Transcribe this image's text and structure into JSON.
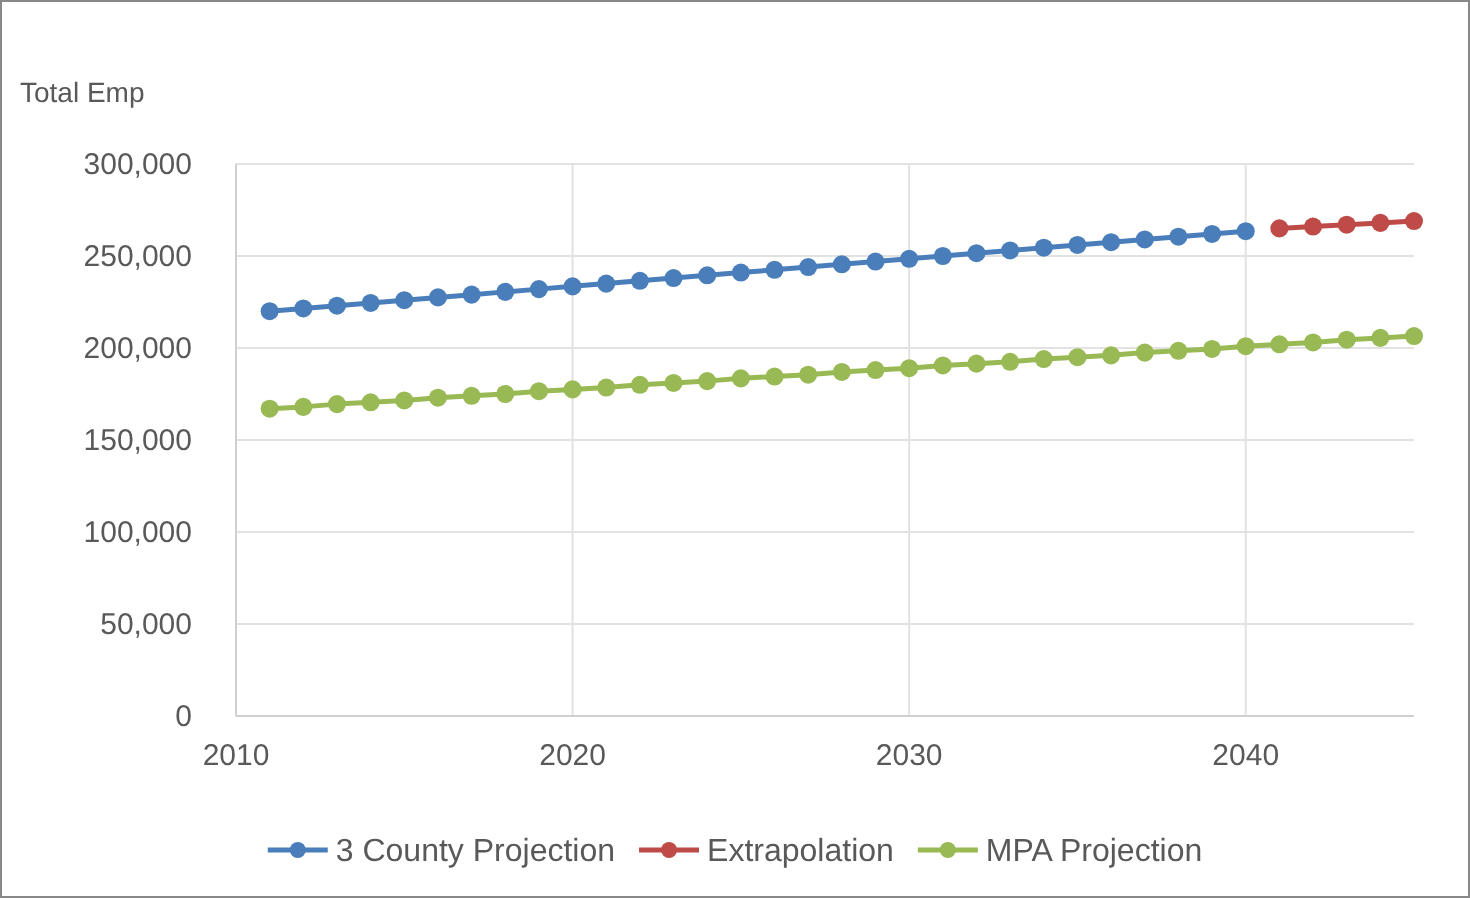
{
  "chart_data": {
    "type": "line",
    "ylabel": "Total Emp",
    "xlim": [
      2010,
      2045
    ],
    "xticks": [
      2010,
      2020,
      2030,
      2040
    ],
    "ylim": [
      0,
      300000
    ],
    "yticks": [
      {
        "value": 0,
        "label": "0"
      },
      {
        "value": 50000,
        "label": "50,000"
      },
      {
        "value": 100000,
        "label": "100,000"
      },
      {
        "value": 150000,
        "label": "150,000"
      },
      {
        "value": 200000,
        "label": "200,000"
      },
      {
        "value": 250000,
        "label": "250,000"
      },
      {
        "value": 300000,
        "label": "300,000"
      }
    ],
    "grid": true,
    "legend": "bottom",
    "marker": "circle",
    "line_style": "solid",
    "series": [
      {
        "name": "3 County Projection",
        "color": "#4a7ebb",
        "x": [
          2011,
          2012,
          2013,
          2014,
          2015,
          2016,
          2017,
          2018,
          2019,
          2020,
          2021,
          2022,
          2023,
          2024,
          2025,
          2026,
          2027,
          2028,
          2029,
          2030,
          2031,
          2032,
          2033,
          2034,
          2035,
          2036,
          2037,
          2038,
          2039,
          2040
        ],
        "values": [
          220000,
          221500,
          223000,
          224500,
          226000,
          227500,
          229000,
          230500,
          232000,
          233500,
          235000,
          236500,
          238000,
          239500,
          241000,
          242500,
          244000,
          245500,
          247000,
          248500,
          250000,
          251500,
          253000,
          254500,
          256000,
          257500,
          259000,
          260500,
          262000,
          263500
        ]
      },
      {
        "name": "Extrapolation",
        "color": "#be4b48",
        "x": [
          2041,
          2042,
          2043,
          2044,
          2045
        ],
        "values": [
          265000,
          266000,
          267000,
          268000,
          269000
        ]
      },
      {
        "name": "MPA Projection",
        "color": "#98b954",
        "x": [
          2011,
          2012,
          2013,
          2014,
          2015,
          2016,
          2017,
          2018,
          2019,
          2020,
          2021,
          2022,
          2023,
          2024,
          2025,
          2026,
          2027,
          2028,
          2029,
          2030,
          2031,
          2032,
          2033,
          2034,
          2035,
          2036,
          2037,
          2038,
          2039,
          2040,
          2041,
          2042,
          2043,
          2044,
          2045
        ],
        "values": [
          167000,
          168000,
          169500,
          170500,
          171500,
          173000,
          174000,
          175000,
          176500,
          177500,
          178500,
          180000,
          181000,
          182000,
          183500,
          184500,
          185500,
          187000,
          188000,
          189000,
          190500,
          191500,
          192500,
          194000,
          195000,
          196000,
          197500,
          198500,
          199500,
          201000,
          202000,
          203000,
          204500,
          205500,
          206500
        ]
      }
    ]
  }
}
